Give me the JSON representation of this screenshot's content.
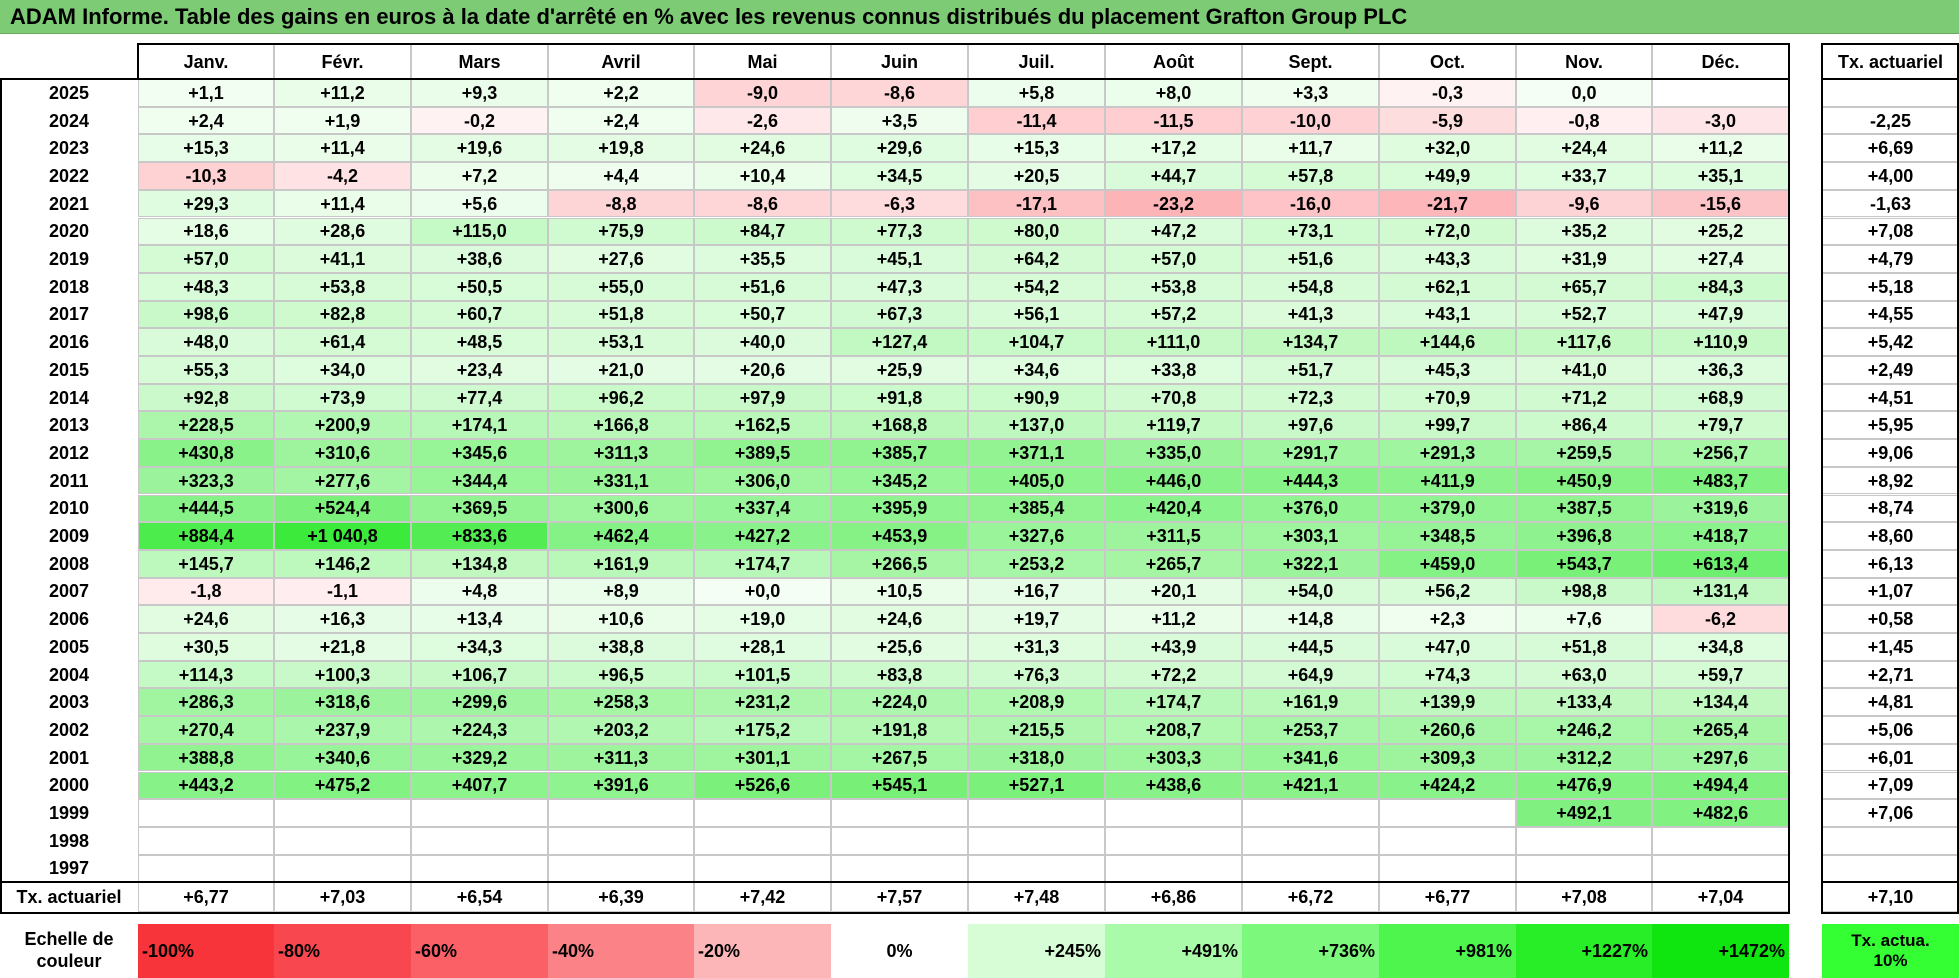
{
  "title": "ADAM Informe. Table des gains en euros à la date d'arrêté en % avec les revenus connus distribués du placement Grafton Group PLC",
  "chart_data": {
    "type": "heatmap",
    "title": "ADAM Informe. Table des gains en euros à la date d'arrêté en % avec les revenus connus distribués du placement Grafton Group PLC",
    "columns": [
      "Janv.",
      "Févr.",
      "Mars",
      "Avril",
      "Mai",
      "Juin",
      "Juil.",
      "Août",
      "Sept.",
      "Oct.",
      "Nov.",
      "Déc."
    ],
    "tx_header": "Tx. actuariel",
    "rows": [
      {
        "year": "2025",
        "values": [
          "+1,1",
          "+11,2",
          "+9,3",
          "+2,2",
          "-9,0",
          "-8,6",
          "+5,8",
          "+8,0",
          "+3,3",
          "-0,3",
          "0,0",
          ""
        ],
        "tx": ""
      },
      {
        "year": "2024",
        "values": [
          "+2,4",
          "+1,9",
          "-0,2",
          "+2,4",
          "-2,6",
          "+3,5",
          "-11,4",
          "-11,5",
          "-10,0",
          "-5,9",
          "-0,8",
          "-3,0"
        ],
        "tx": "-2,25"
      },
      {
        "year": "2023",
        "values": [
          "+15,3",
          "+11,4",
          "+19,6",
          "+19,8",
          "+24,6",
          "+29,6",
          "+15,3",
          "+17,2",
          "+11,7",
          "+32,0",
          "+24,4",
          "+11,2"
        ],
        "tx": "+6,69"
      },
      {
        "year": "2022",
        "values": [
          "-10,3",
          "-4,2",
          "+7,2",
          "+4,4",
          "+10,4",
          "+34,5",
          "+20,5",
          "+44,7",
          "+57,8",
          "+49,9",
          "+33,7",
          "+35,1"
        ],
        "tx": "+4,00"
      },
      {
        "year": "2021",
        "values": [
          "+29,3",
          "+11,4",
          "+5,6",
          "-8,8",
          "-8,6",
          "-6,3",
          "-17,1",
          "-23,2",
          "-16,0",
          "-21,7",
          "-9,6",
          "-15,6"
        ],
        "tx": "-1,63"
      },
      {
        "year": "2020",
        "values": [
          "+18,6",
          "+28,6",
          "+115,0",
          "+75,9",
          "+84,7",
          "+77,3",
          "+80,0",
          "+47,2",
          "+73,1",
          "+72,0",
          "+35,2",
          "+25,2"
        ],
        "tx": "+7,08"
      },
      {
        "year": "2019",
        "values": [
          "+57,0",
          "+41,1",
          "+38,6",
          "+27,6",
          "+35,5",
          "+45,1",
          "+64,2",
          "+57,0",
          "+51,6",
          "+43,3",
          "+31,9",
          "+27,4"
        ],
        "tx": "+4,79"
      },
      {
        "year": "2018",
        "values": [
          "+48,3",
          "+53,8",
          "+50,5",
          "+55,0",
          "+51,6",
          "+47,3",
          "+54,2",
          "+53,8",
          "+54,8",
          "+62,1",
          "+65,7",
          "+84,3"
        ],
        "tx": "+5,18"
      },
      {
        "year": "2017",
        "values": [
          "+98,6",
          "+82,8",
          "+60,7",
          "+51,8",
          "+50,7",
          "+67,3",
          "+56,1",
          "+57,2",
          "+41,3",
          "+43,1",
          "+52,7",
          "+47,9"
        ],
        "tx": "+4,55"
      },
      {
        "year": "2016",
        "values": [
          "+48,0",
          "+61,4",
          "+48,5",
          "+53,1",
          "+40,0",
          "+127,4",
          "+104,7",
          "+111,0",
          "+134,7",
          "+144,6",
          "+117,6",
          "+110,9"
        ],
        "tx": "+5,42"
      },
      {
        "year": "2015",
        "values": [
          "+55,3",
          "+34,0",
          "+23,4",
          "+21,0",
          "+20,6",
          "+25,9",
          "+34,6",
          "+33,8",
          "+51,7",
          "+45,3",
          "+41,0",
          "+36,3"
        ],
        "tx": "+2,49"
      },
      {
        "year": "2014",
        "values": [
          "+92,8",
          "+73,9",
          "+77,4",
          "+96,2",
          "+97,9",
          "+91,8",
          "+90,9",
          "+70,8",
          "+72,3",
          "+70,9",
          "+71,2",
          "+68,9"
        ],
        "tx": "+4,51"
      },
      {
        "year": "2013",
        "values": [
          "+228,5",
          "+200,9",
          "+174,1",
          "+166,8",
          "+162,5",
          "+168,8",
          "+137,0",
          "+119,7",
          "+97,6",
          "+99,7",
          "+86,4",
          "+79,7"
        ],
        "tx": "+5,95"
      },
      {
        "year": "2012",
        "values": [
          "+430,8",
          "+310,6",
          "+345,6",
          "+311,3",
          "+389,5",
          "+385,7",
          "+371,1",
          "+335,0",
          "+291,7",
          "+291,3",
          "+259,5",
          "+256,7"
        ],
        "tx": "+9,06"
      },
      {
        "year": "2011",
        "values": [
          "+323,3",
          "+277,6",
          "+344,4",
          "+331,1",
          "+306,0",
          "+345,2",
          "+405,0",
          "+446,0",
          "+444,3",
          "+411,9",
          "+450,9",
          "+483,7"
        ],
        "tx": "+8,92"
      },
      {
        "year": "2010",
        "values": [
          "+444,5",
          "+524,4",
          "+369,5",
          "+300,6",
          "+337,4",
          "+395,9",
          "+385,4",
          "+420,4",
          "+376,0",
          "+379,0",
          "+387,5",
          "+319,6"
        ],
        "tx": "+8,74"
      },
      {
        "year": "2009",
        "values": [
          "+884,4",
          "+1 040,8",
          "+833,6",
          "+462,4",
          "+427,2",
          "+453,9",
          "+327,6",
          "+311,5",
          "+303,1",
          "+348,5",
          "+396,8",
          "+418,7"
        ],
        "tx": "+8,60"
      },
      {
        "year": "2008",
        "values": [
          "+145,7",
          "+146,2",
          "+134,8",
          "+161,9",
          "+174,7",
          "+266,5",
          "+253,2",
          "+265,7",
          "+322,1",
          "+459,0",
          "+543,7",
          "+613,4"
        ],
        "tx": "+6,13"
      },
      {
        "year": "2007",
        "values": [
          "-1,8",
          "-1,1",
          "+4,8",
          "+8,9",
          "+0,0",
          "+10,5",
          "+16,7",
          "+20,1",
          "+54,0",
          "+56,2",
          "+98,8",
          "+131,4"
        ],
        "tx": "+1,07"
      },
      {
        "year": "2006",
        "values": [
          "+24,6",
          "+16,3",
          "+13,4",
          "+10,6",
          "+19,0",
          "+24,6",
          "+19,7",
          "+11,2",
          "+14,8",
          "+2,3",
          "+7,6",
          "-6,2"
        ],
        "tx": "+0,58"
      },
      {
        "year": "2005",
        "values": [
          "+30,5",
          "+21,8",
          "+34,3",
          "+38,8",
          "+28,1",
          "+25,6",
          "+31,3",
          "+43,9",
          "+44,5",
          "+47,0",
          "+51,8",
          "+34,8"
        ],
        "tx": "+1,45"
      },
      {
        "year": "2004",
        "values": [
          "+114,3",
          "+100,3",
          "+106,7",
          "+96,5",
          "+101,5",
          "+83,8",
          "+76,3",
          "+72,2",
          "+64,9",
          "+74,3",
          "+63,0",
          "+59,7"
        ],
        "tx": "+2,71"
      },
      {
        "year": "2003",
        "values": [
          "+286,3",
          "+318,6",
          "+299,6",
          "+258,3",
          "+231,2",
          "+224,0",
          "+208,9",
          "+174,7",
          "+161,9",
          "+139,9",
          "+133,4",
          "+134,4"
        ],
        "tx": "+4,81"
      },
      {
        "year": "2002",
        "values": [
          "+270,4",
          "+237,9",
          "+224,3",
          "+203,2",
          "+175,2",
          "+191,8",
          "+215,5",
          "+208,7",
          "+253,7",
          "+260,6",
          "+246,2",
          "+265,4"
        ],
        "tx": "+5,06"
      },
      {
        "year": "2001",
        "values": [
          "+388,8",
          "+340,6",
          "+329,2",
          "+311,3",
          "+301,1",
          "+267,5",
          "+318,0",
          "+303,3",
          "+341,6",
          "+309,3",
          "+312,2",
          "+297,6"
        ],
        "tx": "+6,01"
      },
      {
        "year": "2000",
        "values": [
          "+443,2",
          "+475,2",
          "+407,7",
          "+391,6",
          "+526,6",
          "+545,1",
          "+527,1",
          "+438,6",
          "+421,1",
          "+424,2",
          "+476,9",
          "+494,4"
        ],
        "tx": "+7,09"
      },
      {
        "year": "1999",
        "values": [
          "",
          "",
          "",
          "",
          "",
          "",
          "",
          "",
          "",
          "",
          "+492,1",
          "+482,6"
        ],
        "tx": "+7,06"
      },
      {
        "year": "1998",
        "values": [
          "",
          "",
          "",
          "",
          "",
          "",
          "",
          "",
          "",
          "",
          "",
          ""
        ],
        "tx": ""
      },
      {
        "year": "1997",
        "values": [
          "",
          "",
          "",
          "",
          "",
          "",
          "",
          "",
          "",
          "",
          "",
          ""
        ],
        "tx": ""
      }
    ],
    "footer": {
      "label": "Tx. actuariel",
      "values": [
        "+6,77",
        "+7,03",
        "+6,54",
        "+6,39",
        "+7,42",
        "+7,57",
        "+7,48",
        "+6,86",
        "+6,72",
        "+6,77",
        "+7,08",
        "+7,04"
      ],
      "tx": "+7,10"
    },
    "scale": {
      "label": "Echelle de couleur",
      "items": [
        {
          "label": "-100%",
          "value": -100,
          "color": "#f8343b"
        },
        {
          "label": "-80%",
          "value": -80,
          "color": "#f94750"
        },
        {
          "label": "-60%",
          "value": -60,
          "color": "#fa6066"
        },
        {
          "label": "-40%",
          "value": -40,
          "color": "#fb8387"
        },
        {
          "label": "-20%",
          "value": -20,
          "color": "#fdb6b8"
        },
        {
          "label": "0%",
          "value": 0,
          "color": "#ffffff"
        },
        {
          "label": "+245%",
          "value": 245,
          "color": "#d6fdd6"
        },
        {
          "label": "+491%",
          "value": 491,
          "color": "#a9fba9"
        },
        {
          "label": "+736%",
          "value": 736,
          "color": "#7cf87c"
        },
        {
          "label": "+981%",
          "value": 981,
          "color": "#4df54d"
        },
        {
          "label": "+1227%",
          "value": 1227,
          "color": "#27ee27"
        },
        {
          "label": "+1472%",
          "value": 1472,
          "color": "#0fe50f"
        }
      ],
      "tx_swatch": {
        "label": "Tx. actua. 10%",
        "color": "#33ff33"
      }
    }
  }
}
